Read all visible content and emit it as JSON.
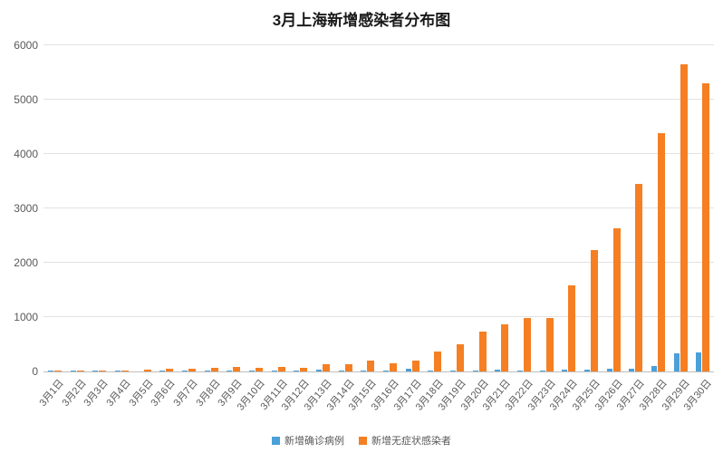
{
  "chart_data": {
    "type": "bar",
    "title": "3月上海新增感染者分布图",
    "categories": [
      "3月1日",
      "3月2日",
      "3月3日",
      "3月4日",
      "3月5日",
      "3月6日",
      "3月7日",
      "3月8日",
      "3月9日",
      "3月10日",
      "3月11日",
      "3月12日",
      "3月13日",
      "3月14日",
      "3月15日",
      "3月16日",
      "3月17日",
      "3月18日",
      "3月19日",
      "3月20日",
      "3月21日",
      "3月22日",
      "3月23日",
      "3月24日",
      "3月25日",
      "3月26日",
      "3月27日",
      "3月28日",
      "3月29日",
      "3月30日"
    ],
    "series": [
      {
        "name": "新增确诊病例",
        "color": "#4aa0d9",
        "values": [
          1,
          3,
          2,
          3,
          0,
          3,
          4,
          3,
          4,
          11,
          5,
          1,
          41,
          9,
          5,
          8,
          57,
          8,
          17,
          24,
          31,
          4,
          4,
          29,
          38,
          45,
          50,
          96,
          326,
          355
        ]
      },
      {
        "name": "新增无症状感染者",
        "color": "#f57f22",
        "values": [
          1,
          5,
          14,
          16,
          28,
          45,
          51,
          62,
          76,
          64,
          78,
          64,
          128,
          130,
          197,
          150,
          203,
          366,
          492,
          734,
          865,
          977,
          979,
          1580,
          2231,
          2631,
          3450,
          4381,
          5656,
          5298
        ]
      }
    ],
    "xlabel": "",
    "ylabel": "",
    "ylim": [
      0,
      6000
    ],
    "yticks": [
      0,
      1000,
      2000,
      3000,
      4000,
      5000,
      6000
    ],
    "grid": true,
    "legend_position": "bottom"
  }
}
